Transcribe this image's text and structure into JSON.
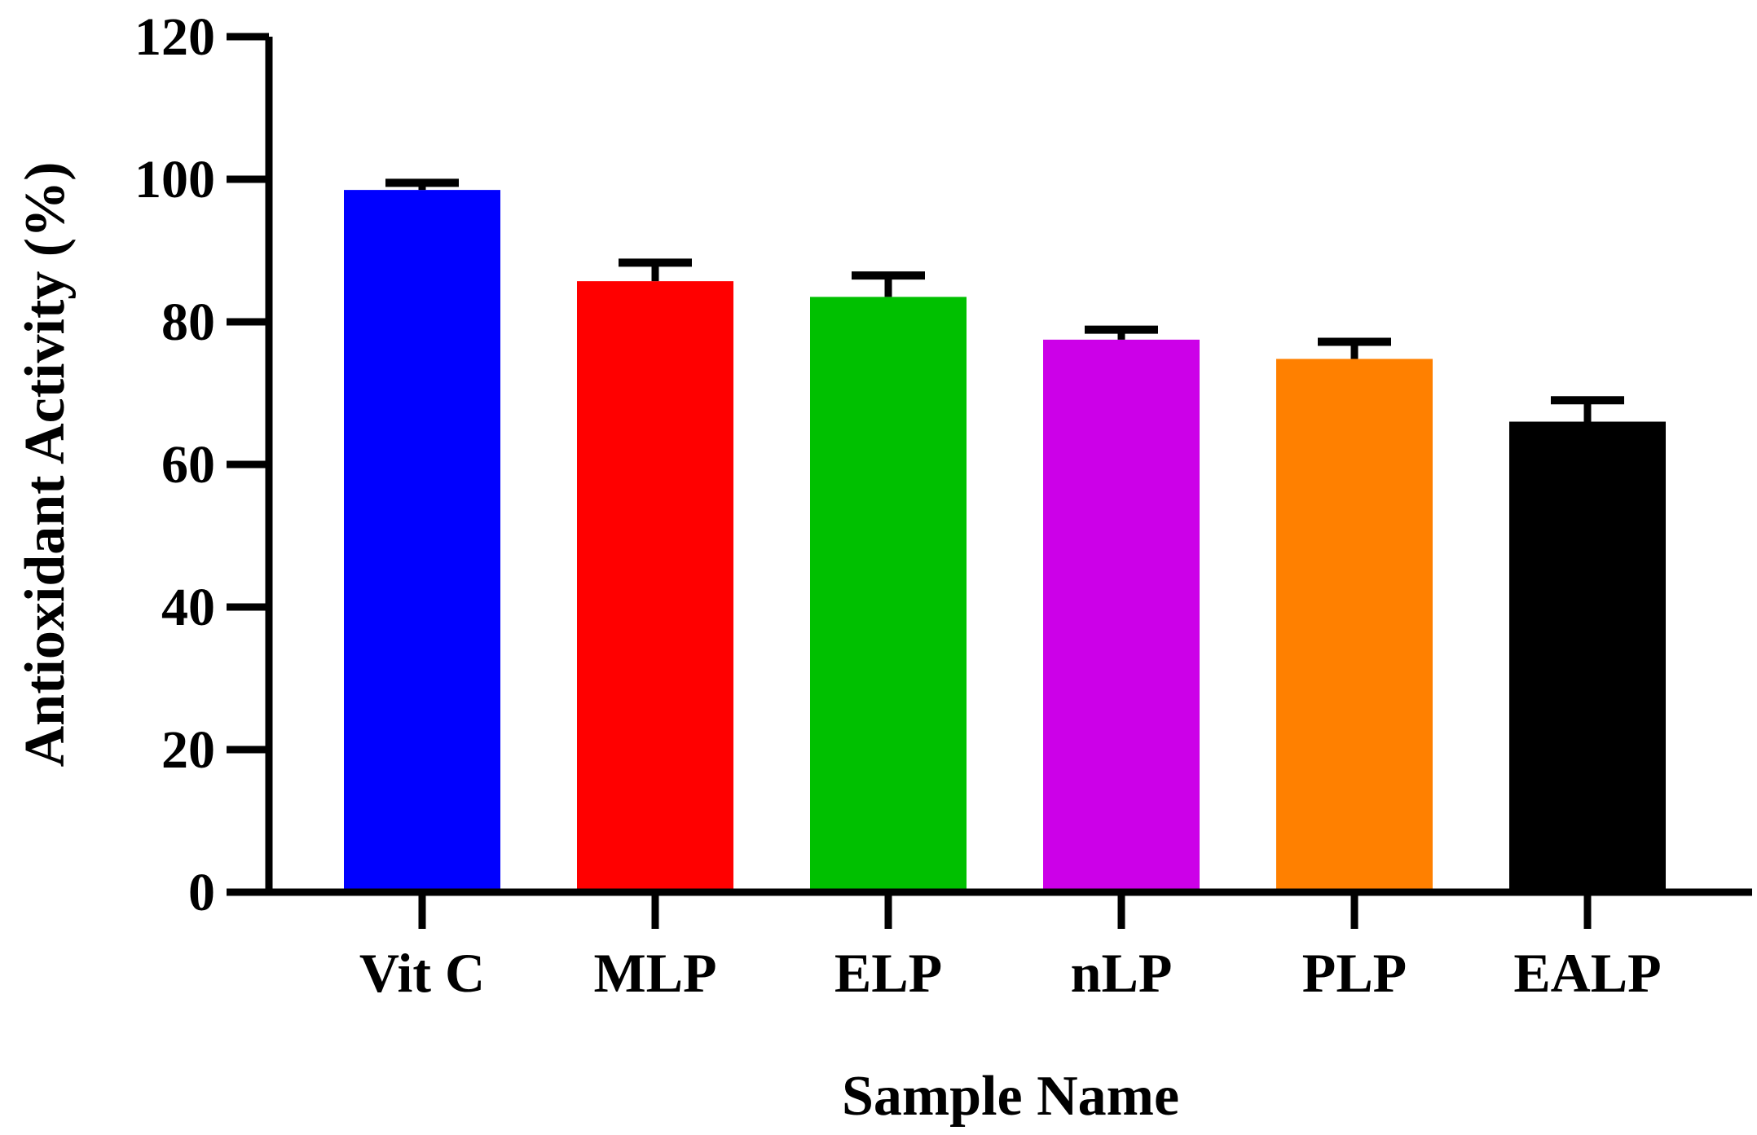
{
  "chart_data": {
    "type": "bar",
    "title": "",
    "xlabel": "Sample Name",
    "ylabel": "Antioxidant Activity (%)",
    "ylim": [
      0,
      120
    ],
    "yticks": [
      "0",
      "20",
      "40",
      "60",
      "80",
      "100",
      "120"
    ],
    "grid": false,
    "categories": [
      "Vit C",
      "MLP",
      "ELP",
      "nLP",
      "PLP",
      "EALP"
    ],
    "values": [
      98.5,
      85.7,
      83.5,
      77.5,
      74.8,
      66.0
    ],
    "errors": [
      1.0,
      2.6,
      3.0,
      1.4,
      2.4,
      3.0
    ],
    "colors": [
      "#0000FF",
      "#FF0000",
      "#00C000",
      "#CC00E8",
      "#FF8000",
      "#000000"
    ]
  }
}
